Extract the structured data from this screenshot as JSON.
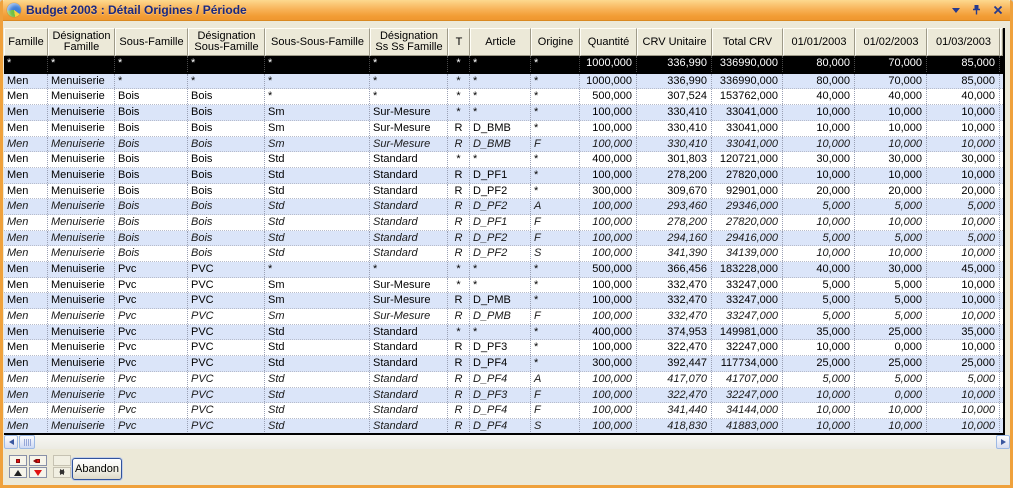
{
  "window": {
    "title": "Budget 2003 : Détail Origines / Période",
    "titlebar_icons": [
      "pie-chart-icon",
      "chevron-down-icon",
      "push-pin-icon",
      "close-icon"
    ]
  },
  "colors": {
    "titlebar_top": "#fdd98f",
    "titlebar_bottom": "#ef9730",
    "frame_orange": "#efa13c",
    "header_beige": "#ece9d8",
    "row_blue": "#dbe5f9",
    "row_white": "#ffffff",
    "selected_bg": "#000000",
    "selected_fg": "#ffffff",
    "title_text": "#1b2a80",
    "accent_red": "#e01010"
  },
  "grid": {
    "columns": [
      {
        "label": "Famille"
      },
      {
        "label": "Désignation Famille"
      },
      {
        "label": "Sous-Famille"
      },
      {
        "label": "Désignation Sous-Famille"
      },
      {
        "label": "Sous-Sous-Famille"
      },
      {
        "label": "Désignation Ss Ss Famille"
      },
      {
        "label": "T"
      },
      {
        "label": "Article"
      },
      {
        "label": "Origine"
      },
      {
        "label": "Quantité"
      },
      {
        "label": "CRV Unitaire"
      },
      {
        "label": "Total CRV"
      },
      {
        "label": "01/01/2003"
      },
      {
        "label": "01/02/2003"
      },
      {
        "label": "01/03/2003"
      }
    ],
    "rows": [
      {
        "selected": true,
        "italic": false,
        "cells": [
          "*",
          "*",
          "*",
          "*",
          "*",
          "*",
          "*",
          "*",
          "*",
          "1000,000",
          "336,990",
          "336990,000",
          "80,000",
          "70,000",
          "85,000"
        ]
      },
      {
        "selected": false,
        "italic": false,
        "cells": [
          "Men",
          "Menuiserie",
          "*",
          "*",
          "*",
          "*",
          "*",
          "*",
          "*",
          "1000,000",
          "336,990",
          "336990,000",
          "80,000",
          "70,000",
          "85,000"
        ]
      },
      {
        "selected": false,
        "italic": false,
        "cells": [
          "Men",
          "Menuiserie",
          "Bois",
          "Bois",
          "*",
          "*",
          "*",
          "*",
          "*",
          "500,000",
          "307,524",
          "153762,000",
          "40,000",
          "40,000",
          "40,000"
        ]
      },
      {
        "selected": false,
        "italic": false,
        "cells": [
          "Men",
          "Menuiserie",
          "Bois",
          "Bois",
          "Sm",
          "Sur-Mesure",
          "*",
          "*",
          "*",
          "100,000",
          "330,410",
          "33041,000",
          "10,000",
          "10,000",
          "10,000"
        ]
      },
      {
        "selected": false,
        "italic": false,
        "cells": [
          "Men",
          "Menuiserie",
          "Bois",
          "Bois",
          "Sm",
          "Sur-Mesure",
          "R",
          "D_BMB",
          "*",
          "100,000",
          "330,410",
          "33041,000",
          "10,000",
          "10,000",
          "10,000"
        ]
      },
      {
        "selected": false,
        "italic": true,
        "cells": [
          "Men",
          "Menuiserie",
          "Bois",
          "Bois",
          "Sm",
          "Sur-Mesure",
          "R",
          "D_BMB",
          "F",
          "100,000",
          "330,410",
          "33041,000",
          "10,000",
          "10,000",
          "10,000"
        ]
      },
      {
        "selected": false,
        "italic": false,
        "cells": [
          "Men",
          "Menuiserie",
          "Bois",
          "Bois",
          "Std",
          "Standard",
          "*",
          "*",
          "*",
          "400,000",
          "301,803",
          "120721,000",
          "30,000",
          "30,000",
          "30,000"
        ]
      },
      {
        "selected": false,
        "italic": false,
        "cells": [
          "Men",
          "Menuiserie",
          "Bois",
          "Bois",
          "Std",
          "Standard",
          "R",
          "D_PF1",
          "*",
          "100,000",
          "278,200",
          "27820,000",
          "10,000",
          "10,000",
          "10,000"
        ]
      },
      {
        "selected": false,
        "italic": false,
        "cells": [
          "Men",
          "Menuiserie",
          "Bois",
          "Bois",
          "Std",
          "Standard",
          "R",
          "D_PF2",
          "*",
          "300,000",
          "309,670",
          "92901,000",
          "20,000",
          "20,000",
          "20,000"
        ]
      },
      {
        "selected": false,
        "italic": true,
        "cells": [
          "Men",
          "Menuiserie",
          "Bois",
          "Bois",
          "Std",
          "Standard",
          "R",
          "D_PF2",
          "A",
          "100,000",
          "293,460",
          "29346,000",
          "5,000",
          "5,000",
          "5,000"
        ]
      },
      {
        "selected": false,
        "italic": true,
        "cells": [
          "Men",
          "Menuiserie",
          "Bois",
          "Bois",
          "Std",
          "Standard",
          "R",
          "D_PF1",
          "F",
          "100,000",
          "278,200",
          "27820,000",
          "10,000",
          "10,000",
          "10,000"
        ]
      },
      {
        "selected": false,
        "italic": true,
        "cells": [
          "Men",
          "Menuiserie",
          "Bois",
          "Bois",
          "Std",
          "Standard",
          "R",
          "D_PF2",
          "F",
          "100,000",
          "294,160",
          "29416,000",
          "5,000",
          "5,000",
          "5,000"
        ]
      },
      {
        "selected": false,
        "italic": true,
        "cells": [
          "Men",
          "Menuiserie",
          "Bois",
          "Bois",
          "Std",
          "Standard",
          "R",
          "D_PF2",
          "S",
          "100,000",
          "341,390",
          "34139,000",
          "10,000",
          "10,000",
          "10,000"
        ]
      },
      {
        "selected": false,
        "italic": false,
        "cells": [
          "Men",
          "Menuiserie",
          "Pvc",
          "PVC",
          "*",
          "*",
          "*",
          "*",
          "*",
          "500,000",
          "366,456",
          "183228,000",
          "40,000",
          "30,000",
          "45,000"
        ]
      },
      {
        "selected": false,
        "italic": false,
        "cells": [
          "Men",
          "Menuiserie",
          "Pvc",
          "PVC",
          "Sm",
          "Sur-Mesure",
          "*",
          "*",
          "*",
          "100,000",
          "332,470",
          "33247,000",
          "5,000",
          "5,000",
          "10,000"
        ]
      },
      {
        "selected": false,
        "italic": false,
        "cells": [
          "Men",
          "Menuiserie",
          "Pvc",
          "PVC",
          "Sm",
          "Sur-Mesure",
          "R",
          "D_PMB",
          "*",
          "100,000",
          "332,470",
          "33247,000",
          "5,000",
          "5,000",
          "10,000"
        ]
      },
      {
        "selected": false,
        "italic": true,
        "cells": [
          "Men",
          "Menuiserie",
          "Pvc",
          "PVC",
          "Sm",
          "Sur-Mesure",
          "R",
          "D_PMB",
          "F",
          "100,000",
          "332,470",
          "33247,000",
          "5,000",
          "5,000",
          "10,000"
        ]
      },
      {
        "selected": false,
        "italic": false,
        "cells": [
          "Men",
          "Menuiserie",
          "Pvc",
          "PVC",
          "Std",
          "Standard",
          "*",
          "*",
          "*",
          "400,000",
          "374,953",
          "149981,000",
          "35,000",
          "25,000",
          "35,000"
        ]
      },
      {
        "selected": false,
        "italic": false,
        "cells": [
          "Men",
          "Menuiserie",
          "Pvc",
          "PVC",
          "Std",
          "Standard",
          "R",
          "D_PF3",
          "*",
          "100,000",
          "322,470",
          "32247,000",
          "10,000",
          "0,000",
          "10,000"
        ]
      },
      {
        "selected": false,
        "italic": false,
        "cells": [
          "Men",
          "Menuiserie",
          "Pvc",
          "PVC",
          "Std",
          "Standard",
          "R",
          "D_PF4",
          "*",
          "300,000",
          "392,447",
          "117734,000",
          "25,000",
          "25,000",
          "25,000"
        ]
      },
      {
        "selected": false,
        "italic": true,
        "cells": [
          "Men",
          "Menuiserie",
          "Pvc",
          "PVC",
          "Std",
          "Standard",
          "R",
          "D_PF4",
          "A",
          "100,000",
          "417,070",
          "41707,000",
          "5,000",
          "5,000",
          "5,000"
        ]
      },
      {
        "selected": false,
        "italic": true,
        "cells": [
          "Men",
          "Menuiserie",
          "Pvc",
          "PVC",
          "Std",
          "Standard",
          "R",
          "D_PF3",
          "F",
          "100,000",
          "322,470",
          "32247,000",
          "10,000",
          "0,000",
          "10,000"
        ]
      },
      {
        "selected": false,
        "italic": true,
        "cells": [
          "Men",
          "Menuiserie",
          "Pvc",
          "PVC",
          "Std",
          "Standard",
          "R",
          "D_PF4",
          "F",
          "100,000",
          "341,440",
          "34144,000",
          "10,000",
          "10,000",
          "10,000"
        ]
      },
      {
        "selected": false,
        "italic": true,
        "cells": [
          "Men",
          "Menuiserie",
          "Pvc",
          "PVC",
          "Std",
          "Standard",
          "R",
          "D_PF4",
          "S",
          "100,000",
          "418,830",
          "41883,000",
          "10,000",
          "10,000",
          "10,000"
        ]
      }
    ]
  },
  "scrollbar": {
    "icons": [
      "arrow-left-icon",
      "arrow-right-icon"
    ]
  },
  "footer": {
    "nav_buttons": [
      {
        "icon": "red-bar"
      },
      {
        "icon": "red-bar-short"
      },
      {
        "icon": "blank"
      },
      {
        "icon": "arrow-up"
      },
      {
        "icon": "arrow-down"
      },
      {
        "icon": "double-arrow"
      }
    ],
    "abandon_label": "Abandon"
  }
}
